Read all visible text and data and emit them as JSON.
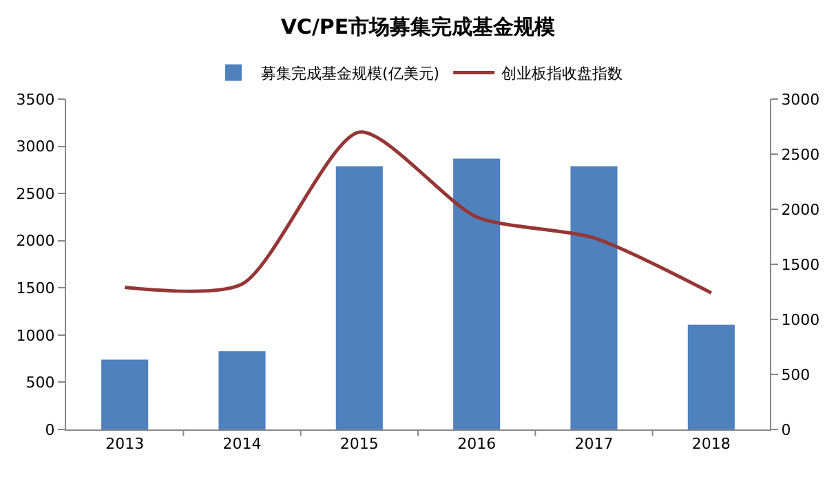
{
  "chart_data": {
    "type": "bar",
    "title": "VC/PE市场募集完成基金规模",
    "categories": [
      "2013",
      "2014",
      "2015",
      "2016",
      "2017",
      "2018"
    ],
    "series": [
      {
        "name": "募集完成基金规模(亿美元)",
        "color": "#4f81bd",
        "values": [
          740,
          830,
          2790,
          2870,
          2790,
          1110
        ]
      },
      {
        "name": "创业板指收盘指数",
        "type": "line",
        "axis": "y2",
        "color": "#953735",
        "values": [
          1290,
          1320,
          2700,
          1930,
          1740,
          1240
        ]
      }
    ],
    "ylim": [
      0,
      3500
    ],
    "yticks": [
      0,
      500,
      1000,
      1500,
      2000,
      2500,
      3000,
      3500
    ],
    "y2lim": [
      0,
      3000
    ],
    "y2ticks": [
      0,
      500,
      1000,
      1500,
      2000,
      2500,
      3000
    ],
    "legend": "top",
    "grid": false,
    "marker": "none",
    "line_style": "solid"
  }
}
